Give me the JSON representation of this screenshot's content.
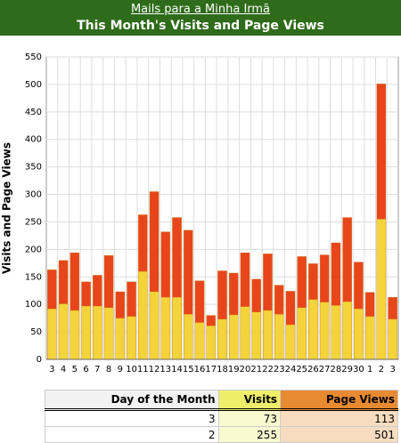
{
  "header": {
    "site": "Mails para a Minha Irmã"
  },
  "chart_data": {
    "type": "bar",
    "title": "This Month's Visits and Page Views",
    "y_label": "Visits and Page Views",
    "categories": [
      "3",
      "4",
      "5",
      "6",
      "7",
      "8",
      "9",
      "10",
      "11",
      "12",
      "13",
      "14",
      "15",
      "16",
      "17",
      "18",
      "19",
      "20",
      "21",
      "22",
      "23",
      "24",
      "25",
      "26",
      "27",
      "28",
      "29",
      "30",
      "1",
      "2",
      "3"
    ],
    "series": [
      {
        "color": "#e8461a",
        "values": [
          163,
          180,
          194,
          141,
          153,
          189,
          123,
          141,
          263,
          305,
          232,
          258,
          235,
          143,
          80,
          161,
          157,
          194,
          146,
          192,
          135,
          124,
          187,
          174,
          190,
          212,
          258,
          177,
          122,
          501,
          113
        ]
      },
      {
        "color": "#f5d33a",
        "values": [
          92,
          101,
          89,
          97,
          97,
          94,
          75,
          78,
          160,
          123,
          113,
          113,
          82,
          67,
          61,
          73,
          81,
          96,
          86,
          89,
          82,
          63,
          94,
          109,
          104,
          98,
          105,
          92,
          78,
          255,
          73
        ]
      }
    ],
    "ylim": [
      0,
      550
    ],
    "yticks": [
      0,
      50,
      100,
      150,
      200,
      250,
      300,
      350,
      400,
      450,
      500,
      550
    ],
    "grid": true
  },
  "table": {
    "columns": [
      "Day of the Month",
      "Visits",
      "Page Views"
    ],
    "rows": [
      [
        3,
        73,
        113
      ],
      [
        2,
        255,
        501
      ]
    ]
  }
}
